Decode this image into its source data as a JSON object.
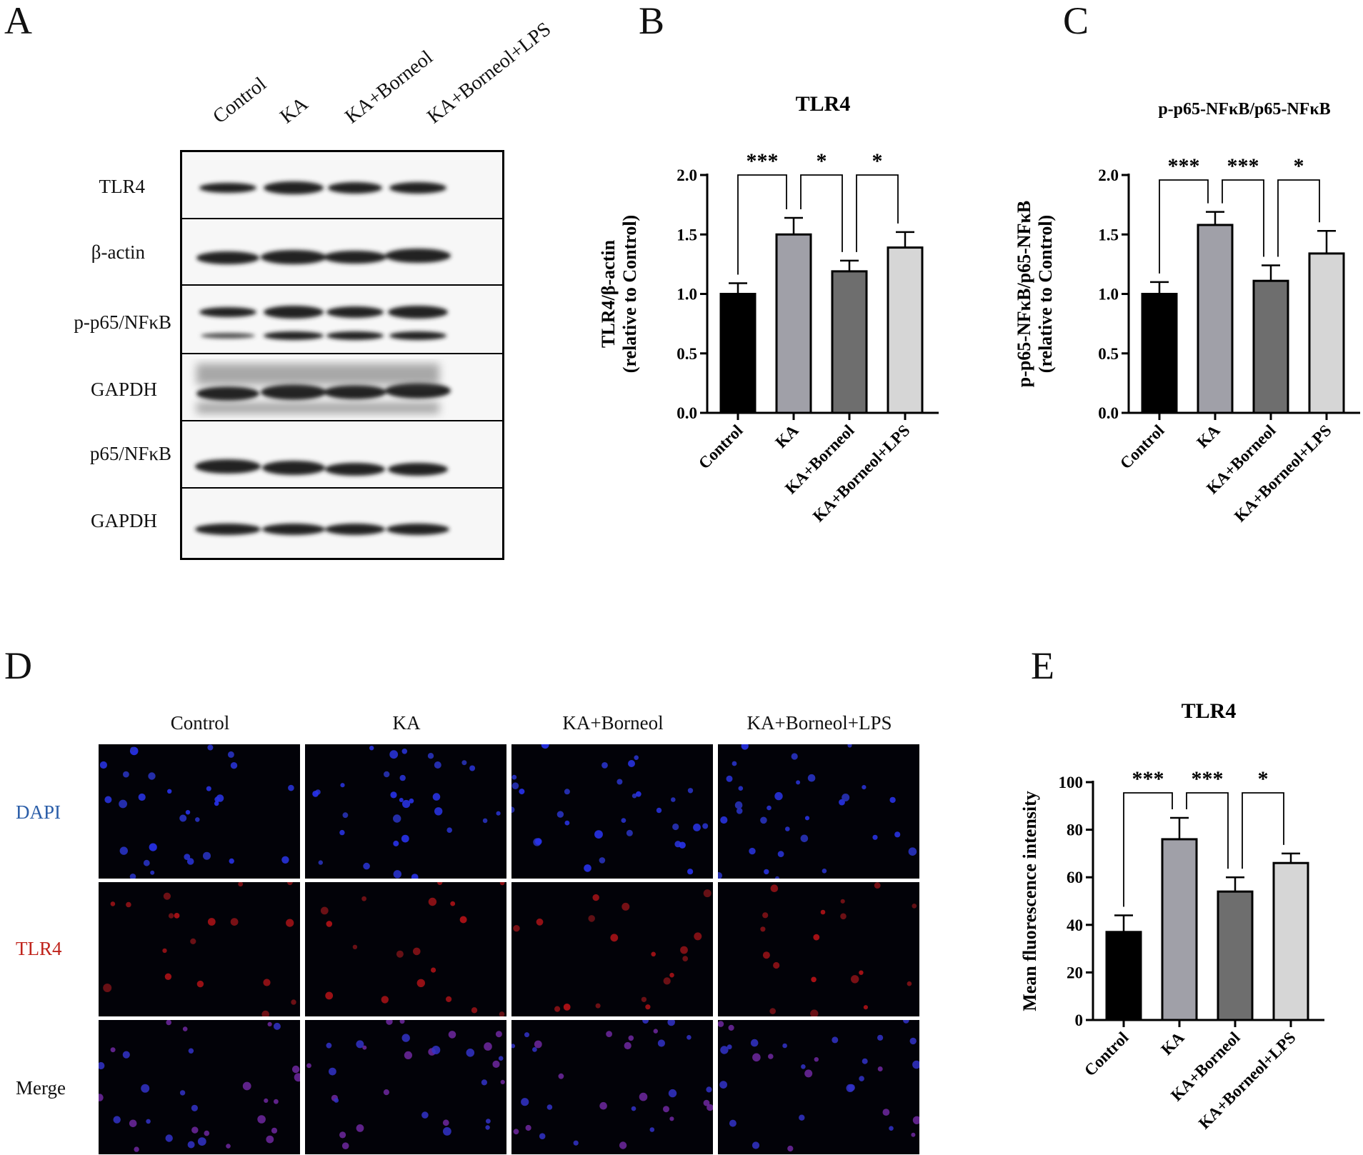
{
  "panel_letters": {
    "a": "A",
    "b": "B",
    "c": "C",
    "d": "D",
    "e": "E"
  },
  "panel_a": {
    "lanes": [
      "Control",
      "KA",
      "KA+Borneol",
      "KA+Borneol+LPS"
    ],
    "rows": [
      "TLR4",
      "β-actin",
      "p-p65/NFκB",
      "GAPDH",
      "p65/NFκB",
      "GAPDH"
    ]
  },
  "panel_d": {
    "columns": [
      "Control",
      "KA",
      "KA+Borneol",
      "KA+Borneol+LPS"
    ],
    "rows": [
      "DAPI",
      "TLR4",
      "Merge"
    ],
    "row_colors": {
      "DAPI": "#2a5da8",
      "TLR4": "#c0241c",
      "Merge": "#111111"
    }
  },
  "colors": {
    "control": "#000000",
    "ka": "#a0a0a8",
    "borneol": "#6e6e6e",
    "lps": "#d6d6d6"
  },
  "chart_data": [
    {
      "id": "B",
      "type": "bar",
      "title": "TLR4",
      "ylabel": [
        "TLR4/β-actin",
        "(relative to Control)"
      ],
      "categories": [
        "Control",
        "KA",
        "KA+Borneol",
        "KA+Borneol+LPS"
      ],
      "values": [
        1.0,
        1.5,
        1.19,
        1.39
      ],
      "errors": [
        0.09,
        0.14,
        0.09,
        0.13
      ],
      "ylim": [
        0,
        2.0
      ],
      "yticks": [
        "0.0",
        "0.5",
        "1.0",
        "1.5",
        "2.0"
      ],
      "significance": [
        {
          "from": 0,
          "to": 1,
          "label": "***"
        },
        {
          "from": 1,
          "to": 2,
          "label": "*"
        },
        {
          "from": 2,
          "to": 3,
          "label": "*"
        }
      ]
    },
    {
      "id": "C",
      "type": "bar",
      "title": "p-p65-NFκB/p65-NFκB",
      "ylabel": [
        "p-p65-NFκB/p65-NFκB",
        "(relative to Control)"
      ],
      "categories": [
        "Control",
        "KA",
        "KA+Borneol",
        "KA+Borneol+LPS"
      ],
      "values": [
        1.0,
        1.58,
        1.11,
        1.34
      ],
      "errors": [
        0.1,
        0.11,
        0.13,
        0.19
      ],
      "ylim": [
        0,
        2.0
      ],
      "yticks": [
        "0.0",
        "0.5",
        "1.0",
        "1.5",
        "2.0"
      ],
      "significance": [
        {
          "from": 0,
          "to": 1,
          "label": "***"
        },
        {
          "from": 1,
          "to": 2,
          "label": "***"
        },
        {
          "from": 2,
          "to": 3,
          "label": "*"
        }
      ]
    },
    {
      "id": "E",
      "type": "bar",
      "title": "TLR4",
      "ylabel": [
        "Mean fluorescence intensity"
      ],
      "categories": [
        "Control",
        "KA",
        "KA+Borneol",
        "KA+Borneol+LPS"
      ],
      "values": [
        37,
        76,
        54,
        66
      ],
      "errors": [
        7,
        9,
        6,
        4
      ],
      "ylim": [
        0,
        100
      ],
      "yticks": [
        "0",
        "20",
        "40",
        "60",
        "80",
        "100"
      ],
      "significance": [
        {
          "from": 0,
          "to": 1,
          "label": "***"
        },
        {
          "from": 1,
          "to": 2,
          "label": "***"
        },
        {
          "from": 2,
          "to": 3,
          "label": "*"
        }
      ]
    }
  ]
}
